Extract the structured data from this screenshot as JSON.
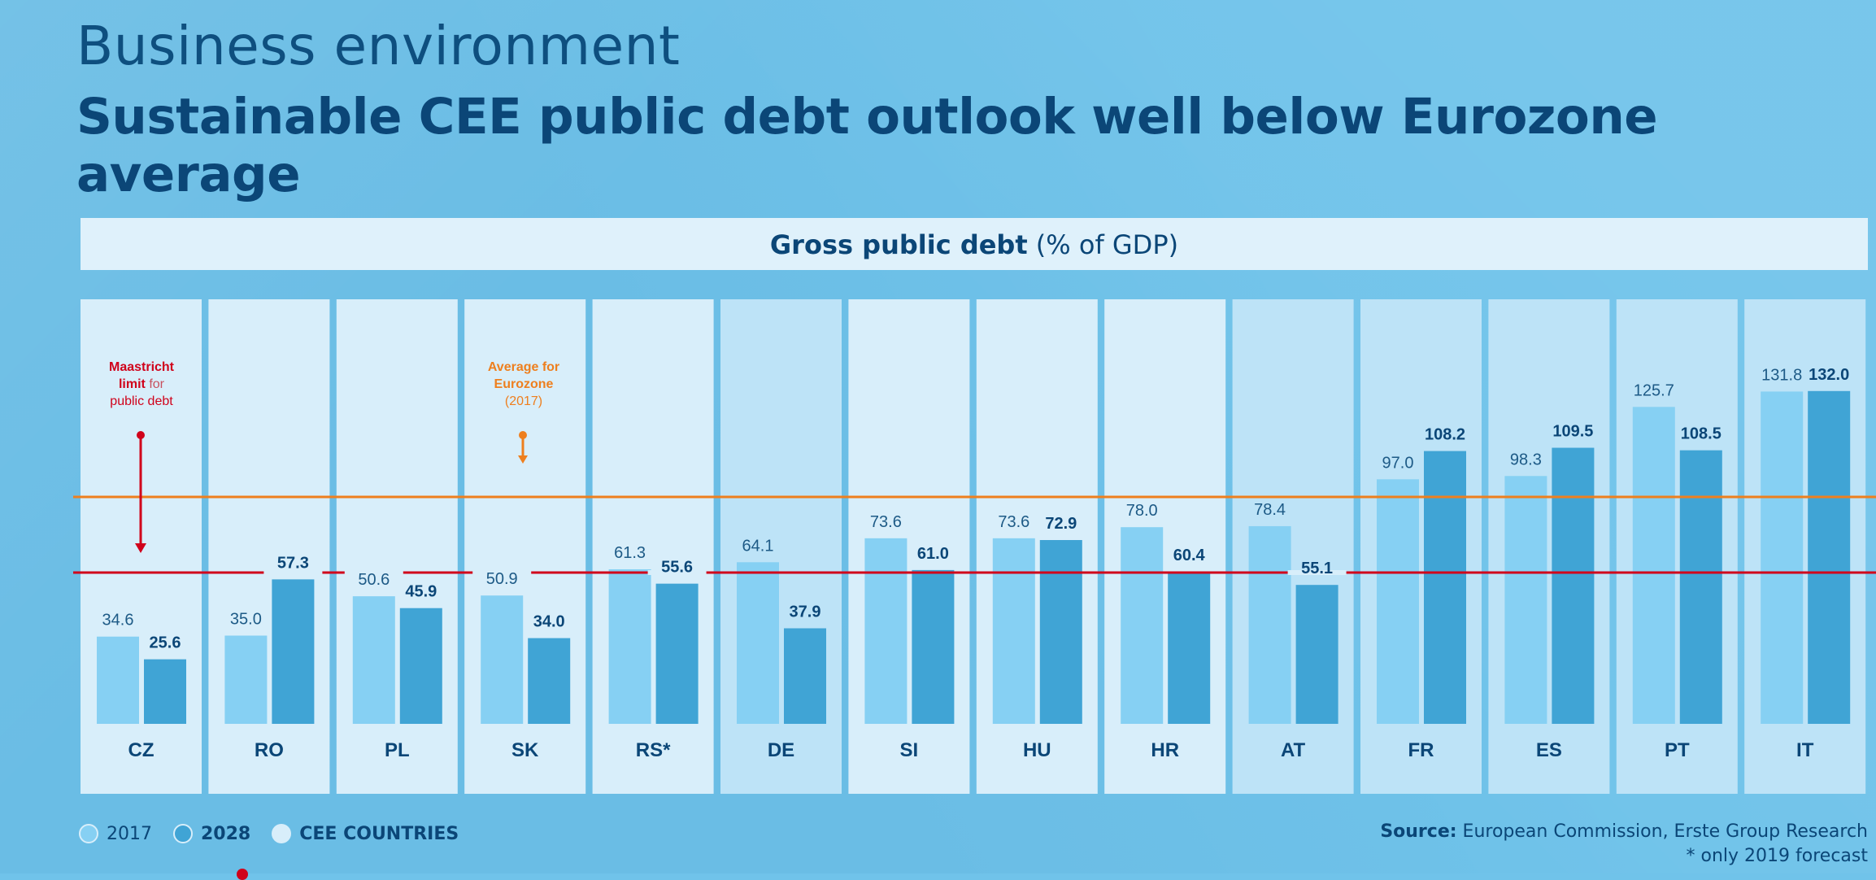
{
  "header": {
    "section": "Business environment",
    "headline": "Sustainable CEE public debt outlook well below Eurozone average"
  },
  "chart_title": {
    "bold": "Gross public debt",
    "rest": "(% of GDP)"
  },
  "annotations": {
    "maastricht": [
      "Maastricht",
      "limit for",
      "public debt"
    ],
    "eurozone": [
      "Average for",
      "Eurozone",
      "(2017)"
    ]
  },
  "legend": {
    "y2017": "2017",
    "y2028": "2028",
    "cee": "CEE COUNTRIES"
  },
  "source": {
    "label": "Source:",
    "text": "European Commission, Erste Group Research",
    "note": "* only 2019 forecast"
  },
  "colors": {
    "bar_2017": "#86d0f3",
    "bar_2028": "#40a4d5",
    "cee_panel": "#d8eefa",
    "other_panel": "#bde3f7",
    "eurozone_line": "#ee7f1e",
    "maastricht_line": "#d0021b"
  },
  "chart_data": {
    "type": "bar",
    "title": "Gross public debt (% of GDP)",
    "categories": [
      "CZ",
      "RO",
      "PL",
      "SK",
      "RS*",
      "DE",
      "SI",
      "HU",
      "HR",
      "AT",
      "FR",
      "ES",
      "PT",
      "IT"
    ],
    "cee": [
      true,
      true,
      true,
      true,
      true,
      false,
      true,
      true,
      true,
      false,
      false,
      false,
      false,
      false
    ],
    "series": [
      {
        "name": "2017",
        "values": [
          34.6,
          35.0,
          50.6,
          50.9,
          61.3,
          64.1,
          73.6,
          73.6,
          78.0,
          78.4,
          97.0,
          98.3,
          125.7,
          131.8
        ]
      },
      {
        "name": "2028",
        "values": [
          25.6,
          57.3,
          45.9,
          34.0,
          55.6,
          37.9,
          61.0,
          72.9,
          60.4,
          55.1,
          108.2,
          109.5,
          108.5,
          132.0
        ]
      }
    ],
    "reference_lines": [
      {
        "name": "Average for Eurozone (2017)",
        "value": 90
      },
      {
        "name": "Maastricht limit for public debt",
        "value": 60
      }
    ],
    "ylim": [
      0,
      140
    ]
  }
}
